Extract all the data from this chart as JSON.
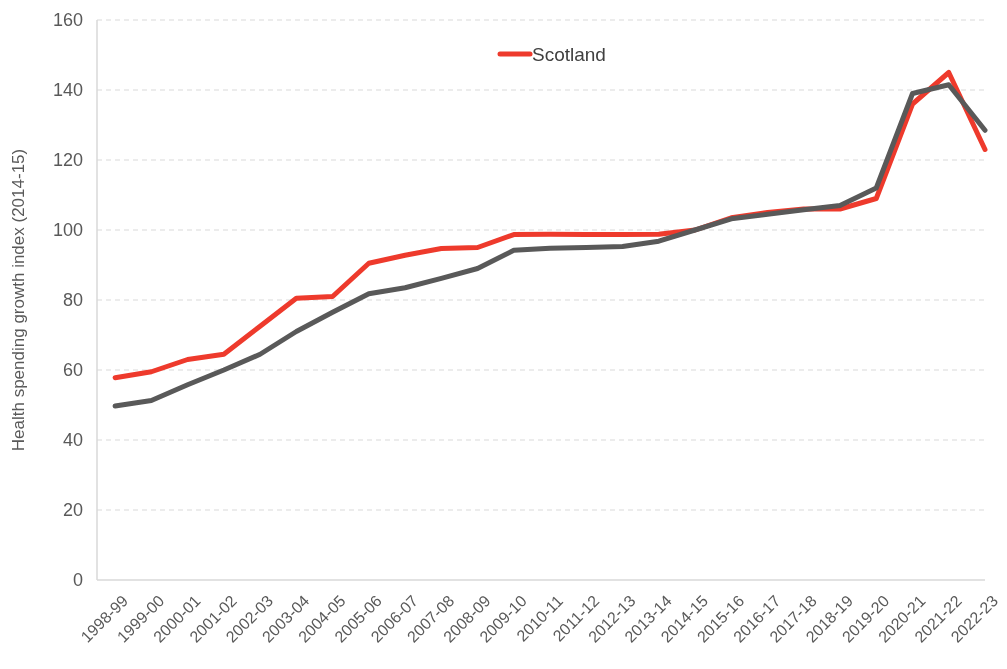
{
  "chart_data": {
    "type": "line",
    "ylabel": "Health spending growth index (2014-15)",
    "categories": [
      "1998-99",
      "1999-00",
      "2000-01",
      "2001-02",
      "2002-03",
      "2003-04",
      "2004-05",
      "2005-06",
      "2006-07",
      "2007-08",
      "2008-09",
      "2009-10",
      "2010-11",
      "2011-12",
      "2012-13",
      "2013-14",
      "2014-15",
      "2015-16",
      "2016-17",
      "2017-18",
      "2018-19",
      "2019-20",
      "2020-21",
      "2021-22",
      "2022-23"
    ],
    "series": [
      {
        "name": "Scotland",
        "color": "#ee3a2c",
        "values": [
          57.8,
          59.5,
          63,
          64.5,
          72.5,
          80.5,
          81,
          90.5,
          92.8,
          94.7,
          95,
          98.7,
          98.8,
          98.7,
          98.7,
          98.8,
          100,
          103.5,
          105,
          106,
          106,
          109,
          136,
          145,
          123
        ]
      },
      {
        "color": "#595959",
        "values": [
          49.7,
          51.3,
          55.8,
          60,
          64.5,
          71,
          76.5,
          81.8,
          83.5,
          86.2,
          89,
          94.2,
          94.8,
          95,
          95.3,
          96.8,
          100,
          103.2,
          104.5,
          105.8,
          107,
          112,
          139,
          141.5,
          128.5
        ]
      }
    ],
    "ylim": [
      0,
      160
    ],
    "yticks": [
      0,
      20,
      40,
      60,
      80,
      100,
      120,
      140,
      160
    ],
    "grid": "y",
    "legend": "top",
    "marker": "none",
    "line_style": "solid"
  }
}
